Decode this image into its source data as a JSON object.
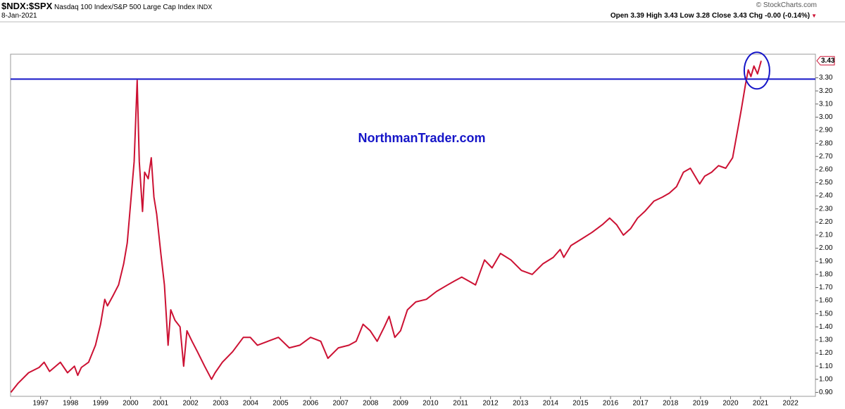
{
  "header": {
    "symbol": "$NDX:$SPX",
    "name": "Nasdaq 100 Index/S&P 500 Large Cap Index",
    "exchange": "INDX",
    "date": "8-Jan-2021",
    "copyright": "© StockCharts.com",
    "quote": [
      {
        "label": "Open",
        "value": "3.39"
      },
      {
        "label": "High",
        "value": "3.43"
      },
      {
        "label": "Low",
        "value": "3.28"
      },
      {
        "label": "Close",
        "value": "3.43"
      },
      {
        "label": "Chg",
        "value": "-0.00 (-0.14%)"
      }
    ]
  },
  "chart_data": {
    "type": "line",
    "annotation": "NorthmanTrader.com",
    "color": "#cc1133",
    "hline": 3.29,
    "hline_color": "#1515c8",
    "last_value_label": "3.43",
    "grid": false,
    "x": [
      1996.01,
      1996.25,
      1996.6,
      1996.95,
      1997.12,
      1997.3,
      1997.66,
      1997.9,
      1998.13,
      1998.24,
      1998.36,
      1998.6,
      1998.83,
      1999.0,
      1999.14,
      1999.23,
      1999.42,
      1999.6,
      1999.77,
      1999.89,
      2000.03,
      2000.12,
      2000.22,
      2000.29,
      2000.4,
      2000.47,
      2000.59,
      2000.69,
      2000.78,
      2000.87,
      2001.01,
      2001.13,
      2001.25,
      2001.34,
      2001.48,
      2001.65,
      2001.77,
      2001.88,
      2002.05,
      2002.23,
      2002.47,
      2002.7,
      2002.82,
      2003.06,
      2003.4,
      2003.76,
      2003.99,
      2004.23,
      2004.58,
      2004.93,
      2005.29,
      2005.64,
      2006.0,
      2006.34,
      2006.58,
      2006.93,
      2007.28,
      2007.52,
      2007.75,
      2007.99,
      2008.22,
      2008.46,
      2008.62,
      2008.81,
      2009.0,
      2009.23,
      2009.51,
      2009.86,
      2010.2,
      2010.57,
      2010.8,
      2011.04,
      2011.27,
      2011.5,
      2011.8,
      2012.05,
      2012.33,
      2012.68,
      2013.03,
      2013.39,
      2013.74,
      2014.09,
      2014.32,
      2014.44,
      2014.68,
      2015.03,
      2015.38,
      2015.73,
      2015.97,
      2016.2,
      2016.43,
      2016.67,
      2016.9,
      2017.14,
      2017.45,
      2017.73,
      2017.96,
      2018.2,
      2018.43,
      2018.66,
      2018.97,
      2019.14,
      2019.37,
      2019.6,
      2019.84,
      2020.07,
      2020.26,
      2020.36,
      2020.5,
      2020.59,
      2020.68,
      2020.78,
      2020.9,
      2021.01,
      2021.02
    ],
    "values": [
      0.9,
      0.97,
      1.05,
      1.09,
      1.13,
      1.06,
      1.13,
      1.05,
      1.1,
      1.03,
      1.09,
      1.13,
      1.26,
      1.42,
      1.61,
      1.56,
      1.64,
      1.72,
      1.88,
      2.04,
      2.42,
      2.66,
      3.28,
      2.66,
      2.28,
      2.58,
      2.53,
      2.69,
      2.39,
      2.26,
      1.96,
      1.72,
      1.26,
      1.53,
      1.45,
      1.4,
      1.1,
      1.37,
      1.29,
      1.21,
      1.1,
      1.0,
      1.05,
      1.13,
      1.21,
      1.32,
      1.32,
      1.26,
      1.29,
      1.32,
      1.24,
      1.26,
      1.32,
      1.29,
      1.16,
      1.24,
      1.26,
      1.29,
      1.42,
      1.37,
      1.29,
      1.4,
      1.48,
      1.32,
      1.37,
      1.53,
      1.59,
      1.61,
      1.67,
      1.72,
      1.75,
      1.78,
      1.75,
      1.72,
      1.91,
      1.85,
      1.96,
      1.91,
      1.83,
      1.8,
      1.88,
      1.93,
      1.99,
      1.93,
      2.02,
      2.07,
      2.12,
      2.18,
      2.23,
      2.18,
      2.1,
      2.15,
      2.23,
      2.28,
      2.36,
      2.39,
      2.42,
      2.47,
      2.58,
      2.61,
      2.49,
      2.55,
      2.58,
      2.63,
      2.61,
      2.69,
      2.93,
      3.06,
      3.25,
      3.36,
      3.31,
      3.39,
      3.33,
      3.42,
      3.43
    ],
    "xlim": [
      1996.0,
      2022.83
    ],
    "xticks": [
      1997,
      1998,
      1999,
      2000,
      2001,
      2002,
      2003,
      2004,
      2005,
      2006,
      2007,
      2008,
      2009,
      2010,
      2011,
      2012,
      2013,
      2014,
      2015,
      2016,
      2017,
      2018,
      2019,
      2020,
      2021,
      2022
    ],
    "ylim": [
      0.87,
      3.48
    ],
    "yticks": [
      {
        "value": 0.9,
        "label": "0.90"
      },
      {
        "value": 1.0,
        "label": "1.00"
      },
      {
        "value": 1.1,
        "label": "1.10"
      },
      {
        "value": 1.2,
        "label": "1.20"
      },
      {
        "value": 1.3,
        "label": "1.30"
      },
      {
        "value": 1.4,
        "label": "1.40"
      },
      {
        "value": 1.5,
        "label": "1.50"
      },
      {
        "value": 1.6,
        "label": "1.60"
      },
      {
        "value": 1.7,
        "label": "1.70"
      },
      {
        "value": 1.8,
        "label": "1.80"
      },
      {
        "value": 1.9,
        "label": "1.90"
      },
      {
        "value": 2.0,
        "label": "2.00"
      },
      {
        "value": 2.1,
        "label": "2.10"
      },
      {
        "value": 2.2,
        "label": "2.20"
      },
      {
        "value": 2.3,
        "label": "2.30"
      },
      {
        "value": 2.4,
        "label": "2.40"
      },
      {
        "value": 2.5,
        "label": "2.50"
      },
      {
        "value": 2.6,
        "label": "2.60"
      },
      {
        "value": 2.7,
        "label": "2.70"
      },
      {
        "value": 2.8,
        "label": "2.80"
      },
      {
        "value": 2.9,
        "label": "2.90"
      },
      {
        "value": 3.0,
        "label": "3.00"
      },
      {
        "value": 3.1,
        "label": "3.10"
      },
      {
        "value": 3.2,
        "label": "3.20"
      },
      {
        "value": 3.3,
        "label": "3.30"
      }
    ]
  }
}
